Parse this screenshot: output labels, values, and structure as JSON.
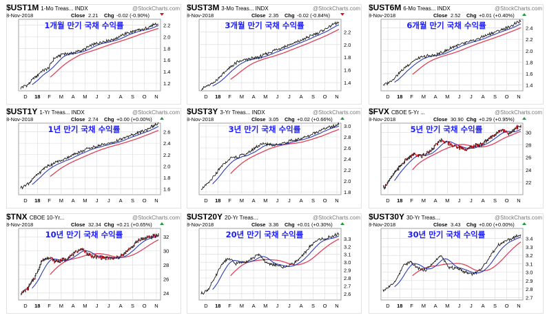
{
  "watermark": "@StockCharts.com",
  "colors": {
    "price": "#1a1a1a",
    "up": "#1a1a1a",
    "down": "#d4101e",
    "ma_fast": "#2a3bb8",
    "ma_slow": "#e0405a",
    "title": "#1c1cff",
    "grid": "#d8d8d8",
    "chg_down": "#d4101e",
    "chg_up": "#1f9a3a"
  },
  "chart_data": [
    {
      "type": "line",
      "ticker": "$UST1M",
      "name": "1-Mo Treas... INDX",
      "date": "8-Nov-2018",
      "close_label": "Close",
      "close": "2.21",
      "chg_label": "Chg",
      "chg": "-0.02 (-0.90%)",
      "dir": "down",
      "title": "1개월 만기 국채 수익률",
      "ylim": [
        1.07,
        2.3
      ],
      "yticks": [
        "1.2",
        "1.4",
        "1.6",
        "1.8",
        "2.0",
        "2.2"
      ],
      "xticks": [
        "D",
        "18",
        "F",
        "M",
        "A",
        "M",
        "J",
        "J",
        "A",
        "S",
        "O",
        "N"
      ],
      "style": "line",
      "anchors": [
        [
          0,
          1.12
        ],
        [
          0.06,
          1.19
        ],
        [
          0.09,
          1.27
        ],
        [
          0.15,
          1.4
        ],
        [
          0.2,
          1.45
        ],
        [
          0.24,
          1.62
        ],
        [
          0.3,
          1.7
        ],
        [
          0.38,
          1.72
        ],
        [
          0.45,
          1.77
        ],
        [
          0.52,
          1.86
        ],
        [
          0.6,
          1.92
        ],
        [
          0.68,
          1.96
        ],
        [
          0.76,
          2.05
        ],
        [
          0.84,
          2.1
        ],
        [
          0.9,
          2.13
        ],
        [
          0.96,
          2.2
        ],
        [
          1,
          2.21
        ]
      ]
    },
    {
      "type": "line",
      "ticker": "$UST3M",
      "name": "3-Mo Treas... INDX",
      "date": "8-Nov-2018",
      "close_label": "Close",
      "close": "2.35",
      "chg_label": "Chg",
      "chg": "-0.02 (-0.84%)",
      "dir": "down",
      "title": "3개월 만기 국채 수익률",
      "ylim": [
        1.27,
        2.4
      ],
      "yticks": [
        "1.4",
        "1.6",
        "1.8",
        "2.0",
        "2.2"
      ],
      "xticks": [
        "D",
        "18",
        "F",
        "M",
        "A",
        "M",
        "J",
        "J",
        "A",
        "S",
        "O",
        "N"
      ],
      "style": "line",
      "anchors": [
        [
          0,
          1.3
        ],
        [
          0.08,
          1.38
        ],
        [
          0.14,
          1.5
        ],
        [
          0.2,
          1.62
        ],
        [
          0.26,
          1.72
        ],
        [
          0.32,
          1.76
        ],
        [
          0.42,
          1.8
        ],
        [
          0.5,
          1.88
        ],
        [
          0.56,
          1.93
        ],
        [
          0.62,
          1.98
        ],
        [
          0.7,
          2.04
        ],
        [
          0.78,
          2.12
        ],
        [
          0.86,
          2.2
        ],
        [
          0.92,
          2.27
        ],
        [
          0.97,
          2.33
        ],
        [
          1,
          2.35
        ]
      ]
    },
    {
      "type": "line",
      "ticker": "$UST6M",
      "name": "6-Mo Treas... INDX",
      "date": "8-Nov-2018",
      "close_label": "Close",
      "close": "2.52",
      "chg_label": "Chg",
      "chg": "+0.01 (+0.40%)",
      "dir": "up",
      "title": "6개월 만기 국채 수익률",
      "ylim": [
        1.3,
        2.55
      ],
      "yticks": [
        "1.4",
        "1.6",
        "1.8",
        "2.0",
        "2.2",
        "2.4"
      ],
      "xticks": [
        "D",
        "18",
        "F",
        "M",
        "A",
        "M",
        "J",
        "J",
        "A",
        "S",
        "O",
        "N"
      ],
      "style": "line",
      "anchors": [
        [
          0,
          1.4
        ],
        [
          0.06,
          1.47
        ],
        [
          0.12,
          1.62
        ],
        [
          0.18,
          1.75
        ],
        [
          0.24,
          1.85
        ],
        [
          0.3,
          1.9
        ],
        [
          0.38,
          1.92
        ],
        [
          0.46,
          2.0
        ],
        [
          0.52,
          2.08
        ],
        [
          0.58,
          2.12
        ],
        [
          0.66,
          2.18
        ],
        [
          0.74,
          2.26
        ],
        [
          0.82,
          2.33
        ],
        [
          0.9,
          2.4
        ],
        [
          0.96,
          2.47
        ],
        [
          1,
          2.52
        ]
      ]
    },
    {
      "type": "line",
      "ticker": "$UST1Y",
      "name": "1-Yr Treas... INDX",
      "date": "8-Nov-2018",
      "close_label": "Close",
      "close": "2.74",
      "chg_label": "Chg",
      "chg": "+0.00 (+0.00%)",
      "dir": "up",
      "title": "1년 만기 국채 수익률",
      "ylim": [
        1.5,
        2.75
      ],
      "yticks": [
        "1.6",
        "1.8",
        "2.0",
        "2.2",
        "2.4",
        "2.6"
      ],
      "xticks": [
        "D",
        "18",
        "F",
        "M",
        "A",
        "M",
        "J",
        "J",
        "A",
        "S",
        "O",
        "N"
      ],
      "style": "line",
      "anchors": [
        [
          0,
          1.62
        ],
        [
          0.06,
          1.7
        ],
        [
          0.12,
          1.85
        ],
        [
          0.18,
          1.98
        ],
        [
          0.24,
          2.05
        ],
        [
          0.3,
          2.1
        ],
        [
          0.38,
          2.2
        ],
        [
          0.46,
          2.28
        ],
        [
          0.52,
          2.33
        ],
        [
          0.6,
          2.38
        ],
        [
          0.68,
          2.42
        ],
        [
          0.76,
          2.5
        ],
        [
          0.84,
          2.57
        ],
        [
          0.9,
          2.62
        ],
        [
          0.96,
          2.7
        ],
        [
          1,
          2.74
        ]
      ]
    },
    {
      "type": "line",
      "ticker": "$UST3Y",
      "name": "3-Yr Treas... INDX",
      "date": "8-Nov-2018",
      "close_label": "Close",
      "close": "3.05",
      "chg_label": "Chg",
      "chg": "+0.02 (+0.66%)",
      "dir": "up",
      "title": "3년 만기 국채 수익률",
      "ylim": [
        1.75,
        3.05
      ],
      "yticks": [
        "1.8",
        "2.0",
        "2.2",
        "2.4",
        "2.6",
        "2.8",
        "3.0"
      ],
      "xticks": [
        "D",
        "18",
        "F",
        "M",
        "A",
        "M",
        "J",
        "J",
        "A",
        "S",
        "O",
        "N"
      ],
      "style": "line",
      "anchors": [
        [
          0,
          1.85
        ],
        [
          0.05,
          1.95
        ],
        [
          0.1,
          2.1
        ],
        [
          0.16,
          2.3
        ],
        [
          0.22,
          2.42
        ],
        [
          0.28,
          2.45
        ],
        [
          0.34,
          2.5
        ],
        [
          0.4,
          2.62
        ],
        [
          0.46,
          2.68
        ],
        [
          0.52,
          2.65
        ],
        [
          0.58,
          2.68
        ],
        [
          0.64,
          2.72
        ],
        [
          0.7,
          2.75
        ],
        [
          0.78,
          2.82
        ],
        [
          0.86,
          2.92
        ],
        [
          0.92,
          2.97
        ],
        [
          0.97,
          3.0
        ],
        [
          1,
          3.05
        ]
      ]
    },
    {
      "type": "line",
      "ticker": "$FVX",
      "name": "CBOE 5-Yr ...",
      "date": "8-Nov-2018",
      "close_label": "Close",
      "close": "30.90",
      "chg_label": "Chg",
      "chg": "+0.29 (+0.95%)",
      "dir": "up",
      "title": "5년 만기 국채 수익률",
      "ylim": [
        20,
        31.5
      ],
      "yticks": [
        "22",
        "24",
        "26",
        "28",
        "30"
      ],
      "xticks": [
        "D",
        "18",
        "F",
        "M",
        "A",
        "M",
        "J",
        "J",
        "A",
        "S",
        "O",
        "N"
      ],
      "style": "bars",
      "anchors": [
        [
          0,
          21
        ],
        [
          0.05,
          22.5
        ],
        [
          0.1,
          24
        ],
        [
          0.16,
          25.5
        ],
        [
          0.22,
          26.5
        ],
        [
          0.28,
          26.2
        ],
        [
          0.34,
          27
        ],
        [
          0.42,
          28.8
        ],
        [
          0.48,
          28.2
        ],
        [
          0.54,
          27.6
        ],
        [
          0.6,
          27.3
        ],
        [
          0.66,
          27.8
        ],
        [
          0.72,
          28.2
        ],
        [
          0.8,
          29.5
        ],
        [
          0.86,
          30.5
        ],
        [
          0.92,
          29.8
        ],
        [
          0.96,
          30.8
        ],
        [
          1,
          30.9
        ]
      ]
    },
    {
      "type": "line",
      "ticker": "$TNX",
      "name": "CBOE 10-Yr...",
      "date": "8-Nov-2018",
      "close_label": "Close",
      "close": "32.34",
      "chg_label": "Chg",
      "chg": "+0.21 (+0.65%)",
      "dir": "up",
      "title": "10년 만기 국채 수익률",
      "ylim": [
        23,
        33.2
      ],
      "yticks": [
        "24",
        "26",
        "28",
        "30",
        "32"
      ],
      "xticks": [
        "D",
        "18",
        "F",
        "M",
        "A",
        "M",
        "J",
        "J",
        "A",
        "S",
        "O",
        "N"
      ],
      "style": "bars",
      "anchors": [
        [
          0,
          24
        ],
        [
          0.05,
          24.6
        ],
        [
          0.1,
          26.2
        ],
        [
          0.15,
          28.5
        ],
        [
          0.2,
          29.1
        ],
        [
          0.25,
          28.5
        ],
        [
          0.32,
          28.7
        ],
        [
          0.38,
          29.6
        ],
        [
          0.44,
          30.3
        ],
        [
          0.5,
          29.3
        ],
        [
          0.56,
          29.1
        ],
        [
          0.62,
          29.0
        ],
        [
          0.68,
          28.9
        ],
        [
          0.74,
          29.4
        ],
        [
          0.8,
          30.5
        ],
        [
          0.86,
          31.6
        ],
        [
          0.92,
          31.9
        ],
        [
          0.97,
          32.1
        ],
        [
          1,
          32.3
        ]
      ]
    },
    {
      "type": "line",
      "ticker": "$UST20Y",
      "name": "20-Yr Treas...",
      "date": "8-Nov-2018",
      "close_label": "Close",
      "close": "3.36",
      "chg_label": "Chg",
      "chg": "+0.01 (+0.30%)",
      "dir": "up",
      "title": "20년 만기 국채 수익률",
      "ylim": [
        2.52,
        3.43
      ],
      "yticks": [
        "2.6",
        "2.7",
        "2.8",
        "2.9",
        "3.0",
        "3.1",
        "3.2",
        "3.3"
      ],
      "xticks": [
        "D",
        "18",
        "F",
        "M",
        "A",
        "M",
        "J",
        "J",
        "A",
        "S",
        "O",
        "N"
      ],
      "style": "line",
      "anchors": [
        [
          0,
          2.6
        ],
        [
          0.05,
          2.65
        ],
        [
          0.1,
          2.8
        ],
        [
          0.15,
          2.98
        ],
        [
          0.2,
          3.05
        ],
        [
          0.25,
          2.98
        ],
        [
          0.3,
          3.0
        ],
        [
          0.36,
          3.04
        ],
        [
          0.42,
          3.1
        ],
        [
          0.48,
          2.98
        ],
        [
          0.54,
          2.97
        ],
        [
          0.6,
          2.93
        ],
        [
          0.66,
          2.98
        ],
        [
          0.72,
          3.05
        ],
        [
          0.78,
          3.18
        ],
        [
          0.84,
          3.28
        ],
        [
          0.9,
          3.3
        ],
        [
          0.96,
          3.33
        ],
        [
          1,
          3.36
        ]
      ]
    },
    {
      "type": "line",
      "ticker": "$UST30Y",
      "name": "30-Yr Treas...",
      "date": "8-Nov-2018",
      "close_label": "Close",
      "close": "3.43",
      "chg_label": "Chg",
      "chg": "+0.00 (+0.00%)",
      "dir": "up",
      "title": "30년 만기 국채 수익률",
      "ylim": [
        2.67,
        3.52
      ],
      "yticks": [
        "2.7",
        "2.8",
        "2.9",
        "3.0",
        "3.1",
        "3.2",
        "3.3",
        "3.4"
      ],
      "xticks": [
        "D",
        "18",
        "F",
        "M",
        "A",
        "M",
        "J",
        "J",
        "A",
        "S",
        "O",
        "N"
      ],
      "style": "line",
      "anchors": [
        [
          0,
          2.78
        ],
        [
          0.05,
          2.83
        ],
        [
          0.1,
          2.92
        ],
        [
          0.15,
          3.08
        ],
        [
          0.2,
          3.12
        ],
        [
          0.25,
          3.05
        ],
        [
          0.3,
          3.02
        ],
        [
          0.36,
          3.1
        ],
        [
          0.42,
          3.2
        ],
        [
          0.48,
          3.05
        ],
        [
          0.54,
          3.05
        ],
        [
          0.6,
          3.0
        ],
        [
          0.66,
          2.98
        ],
        [
          0.72,
          3.05
        ],
        [
          0.78,
          3.2
        ],
        [
          0.84,
          3.33
        ],
        [
          0.9,
          3.38
        ],
        [
          0.96,
          3.42
        ],
        [
          1,
          3.43
        ]
      ]
    }
  ]
}
